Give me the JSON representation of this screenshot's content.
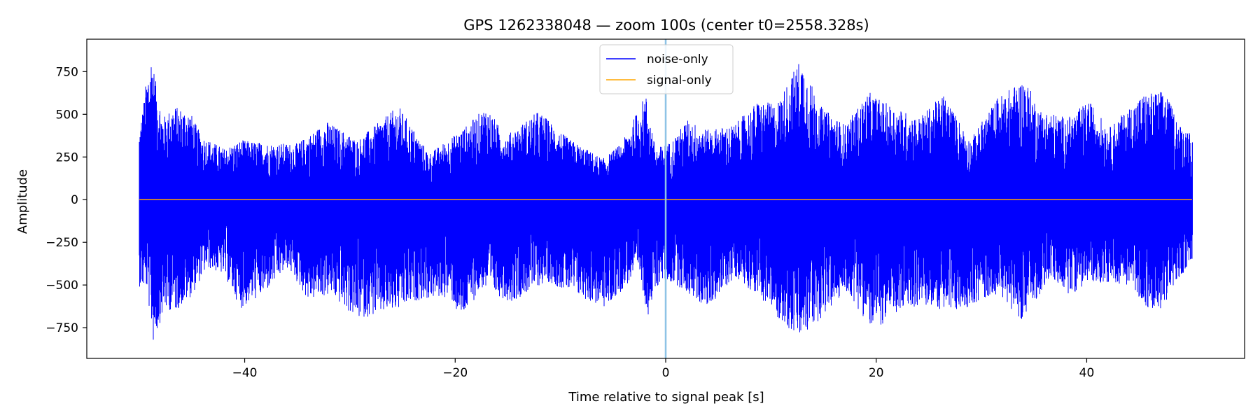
{
  "chart_data": {
    "type": "line",
    "title": "GPS 1262338048 — zoom 100s (center t0=2558.328s)",
    "xlabel": "Time relative to signal peak [s]",
    "ylabel": "Amplitude",
    "xlim": [
      -55,
      55
    ],
    "ylim": [
      -930,
      940
    ],
    "x_ticks": [
      -40,
      -20,
      0,
      20,
      40
    ],
    "x_tick_labels": [
      "−40",
      "−20",
      "0",
      "20",
      "40"
    ],
    "y_ticks": [
      750,
      500,
      250,
      0,
      -250,
      -500,
      -750
    ],
    "y_tick_labels": [
      "750",
      "500",
      "250",
      "0",
      "−250",
      "−500",
      "−750"
    ],
    "grid": false,
    "legend_position": "top-center",
    "marker_line_x": 0,
    "colors": {
      "noise": "#0000ff",
      "signal": "#ffa500",
      "marker": "#8ec3e6"
    },
    "series": [
      {
        "name": "noise-only",
        "color": "#0000ff",
        "x_range": [
          -50,
          50
        ],
        "envelope_max": [
          [
            -50,
            400
          ],
          [
            -49.7,
            550
          ],
          [
            -49.2,
            760
          ],
          [
            -48.8,
            870
          ],
          [
            -48.5,
            700
          ],
          [
            -47.8,
            480
          ],
          [
            -46.8,
            550
          ],
          [
            -45.2,
            520
          ],
          [
            -44.2,
            380
          ],
          [
            -42.0,
            300
          ],
          [
            -40.3,
            350
          ],
          [
            -37.7,
            330
          ],
          [
            -35.0,
            330
          ],
          [
            -32.2,
            460
          ],
          [
            -29.3,
            350
          ],
          [
            -25.4,
            550
          ],
          [
            -22.5,
            270
          ],
          [
            -19.0,
            430
          ],
          [
            -17.0,
            550
          ],
          [
            -15.3,
            370
          ],
          [
            -12.1,
            520
          ],
          [
            -9.3,
            360
          ],
          [
            -6.0,
            240
          ],
          [
            -4.2,
            330
          ],
          [
            -1.9,
            620
          ],
          [
            -1.0,
            300
          ],
          [
            0.5,
            340
          ],
          [
            2.0,
            470
          ],
          [
            4.0,
            410
          ],
          [
            6.5,
            440
          ],
          [
            8.8,
            580
          ],
          [
            10.5,
            560
          ],
          [
            12.8,
            830
          ],
          [
            14.8,
            540
          ],
          [
            17.0,
            440
          ],
          [
            19.3,
            630
          ],
          [
            20.8,
            570
          ],
          [
            24.0,
            480
          ],
          [
            26.4,
            620
          ],
          [
            28.9,
            350
          ],
          [
            31.5,
            600
          ],
          [
            34.1,
            710
          ],
          [
            35.5,
            530
          ],
          [
            38.2,
            480
          ],
          [
            40.2,
            580
          ],
          [
            42.1,
            420
          ],
          [
            45.3,
            620
          ],
          [
            47.4,
            640
          ],
          [
            48.8,
            440
          ],
          [
            50,
            400
          ]
        ],
        "envelope_min": [
          [
            -50,
            -510
          ],
          [
            -49.3,
            -520
          ],
          [
            -48.7,
            -840
          ],
          [
            -47.7,
            -650
          ],
          [
            -46.5,
            -650
          ],
          [
            -45.0,
            -560
          ],
          [
            -43.6,
            -400
          ],
          [
            -42.0,
            -440
          ],
          [
            -40.4,
            -640
          ],
          [
            -38.3,
            -560
          ],
          [
            -35.9,
            -400
          ],
          [
            -34.0,
            -590
          ],
          [
            -31.8,
            -560
          ],
          [
            -29.4,
            -700
          ],
          [
            -25.3,
            -650
          ],
          [
            -23.6,
            -590
          ],
          [
            -20.5,
            -570
          ],
          [
            -19.5,
            -710
          ],
          [
            -17.5,
            -520
          ],
          [
            -14.7,
            -600
          ],
          [
            -11.3,
            -480
          ],
          [
            -8.6,
            -560
          ],
          [
            -5.7,
            -640
          ],
          [
            -2.6,
            -420
          ],
          [
            -1.7,
            -680
          ],
          [
            -0.5,
            -470
          ],
          [
            1.0,
            -500
          ],
          [
            3.9,
            -640
          ],
          [
            6.6,
            -450
          ],
          [
            9.2,
            -590
          ],
          [
            11.3,
            -740
          ],
          [
            12.8,
            -820
          ],
          [
            14.8,
            -690
          ],
          [
            17.2,
            -540
          ],
          [
            19.7,
            -770
          ],
          [
            22.2,
            -660
          ],
          [
            24.1,
            -620
          ],
          [
            27.5,
            -660
          ],
          [
            31.5,
            -550
          ],
          [
            33.9,
            -710
          ],
          [
            36.5,
            -460
          ],
          [
            38.4,
            -560
          ],
          [
            40.3,
            -480
          ],
          [
            44.0,
            -500
          ],
          [
            46.5,
            -690
          ],
          [
            49.9,
            -360
          ],
          [
            50,
            -350
          ]
        ]
      },
      {
        "name": "signal-only",
        "color": "#ffa500",
        "x": [
          -50,
          50
        ],
        "y": [
          0,
          0
        ]
      }
    ]
  }
}
